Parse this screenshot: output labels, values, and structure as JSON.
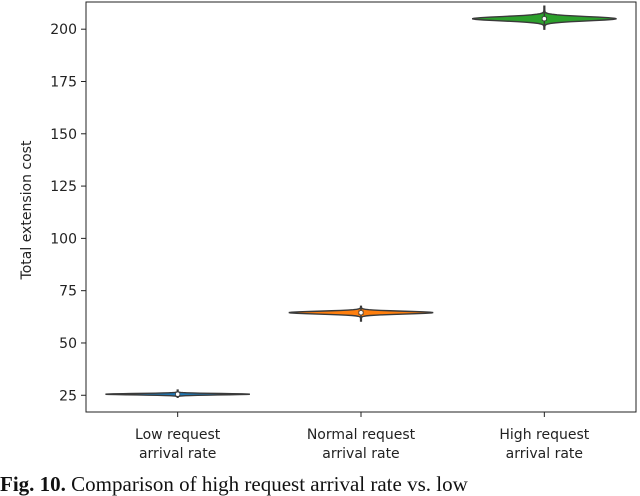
{
  "chart_data": {
    "type": "violin",
    "categories": [
      [
        "Low request",
        "arrival rate"
      ],
      [
        "Normal request",
        "arrival rate"
      ],
      [
        "High request",
        "arrival rate"
      ]
    ],
    "series": [
      {
        "category": "Low request arrival rate",
        "median": 25.5,
        "q1": 25,
        "q3": 26,
        "min": 24,
        "max": 27.5,
        "color": "#1f77b4"
      },
      {
        "category": "Normal request arrival rate",
        "median": 64.5,
        "q1": 63.5,
        "q3": 65.5,
        "min": 60.5,
        "max": 67.5,
        "color": "#ff7f0e"
      },
      {
        "category": "High request arrival rate",
        "median": 205,
        "q1": 204,
        "q3": 206,
        "min": 200,
        "max": 211,
        "color": "#2ca02c"
      }
    ],
    "xlabel": "",
    "ylabel": "Total extension cost",
    "ylim": [
      17,
      213
    ],
    "yticks": [
      25,
      50,
      75,
      100,
      125,
      150,
      175,
      200
    ],
    "grid": false
  },
  "caption": {
    "label": "Fig. 10.",
    "text": "Comparison of high request arrival rate vs. low"
  }
}
